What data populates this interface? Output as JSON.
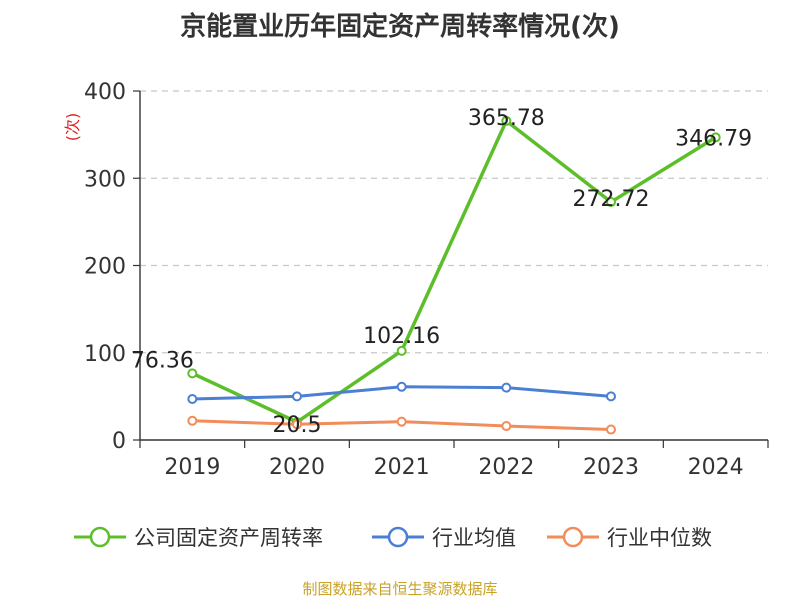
{
  "title": "京能置业历年固定资产周转率情况(次)",
  "source": "制图数据来自恒生聚源数据库",
  "chart_data": {
    "type": "line",
    "title": "京能置业历年固定资产周转率情况(次)",
    "ylabel": "(次)",
    "xlabel": "",
    "categories": [
      "2019",
      "2020",
      "2021",
      "2022",
      "2023",
      "2024"
    ],
    "ylim": [
      0,
      400
    ],
    "yticks": [
      0,
      100,
      200,
      300,
      400
    ],
    "grid": true,
    "legend_position": "bottom",
    "series": [
      {
        "name": "公司固定资产周转率",
        "color": "#5cbf2a",
        "values": [
          76.36,
          20.5,
          102.16,
          365.78,
          272.72,
          346.79
        ],
        "labels": [
          "76.36",
          "20.5",
          "102.16",
          "365.78",
          "272.72",
          "346.79"
        ]
      },
      {
        "name": "行业均值",
        "color": "#4a7fd4",
        "values": [
          47,
          50,
          61,
          60,
          50,
          null
        ]
      },
      {
        "name": "行业中位数",
        "color": "#f28c5a",
        "values": [
          22,
          18,
          21,
          16,
          12,
          null
        ]
      }
    ]
  }
}
